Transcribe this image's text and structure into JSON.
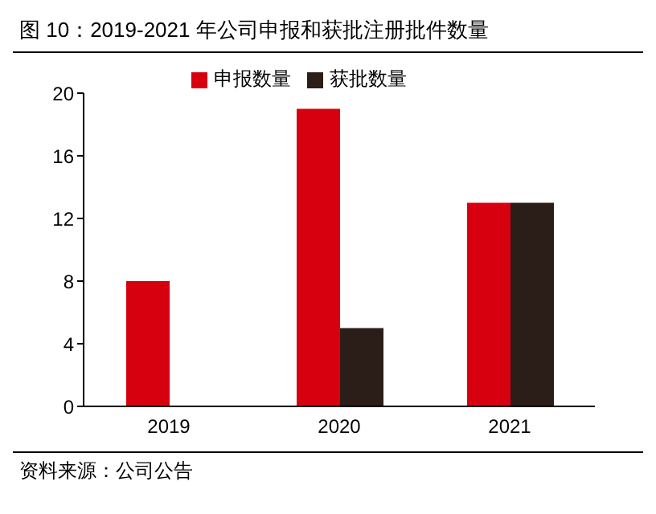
{
  "chart_data": {
    "type": "bar",
    "title": "图 10：2019-2021 年公司申报和获批注册批件数量",
    "categories": [
      "2019",
      "2020",
      "2021"
    ],
    "series": [
      {
        "name": "申报数量",
        "color": "#d7000f",
        "values": [
          8,
          19,
          13
        ]
      },
      {
        "name": "获批数量",
        "color": "#2b1d18",
        "values": [
          0,
          5,
          13
        ]
      }
    ],
    "ylim": [
      0,
      20
    ],
    "yticks": [
      0,
      4,
      8,
      12,
      16,
      20
    ],
    "grid": false,
    "legend": "top",
    "annotations": [
      "资料来源：公司公告"
    ]
  }
}
